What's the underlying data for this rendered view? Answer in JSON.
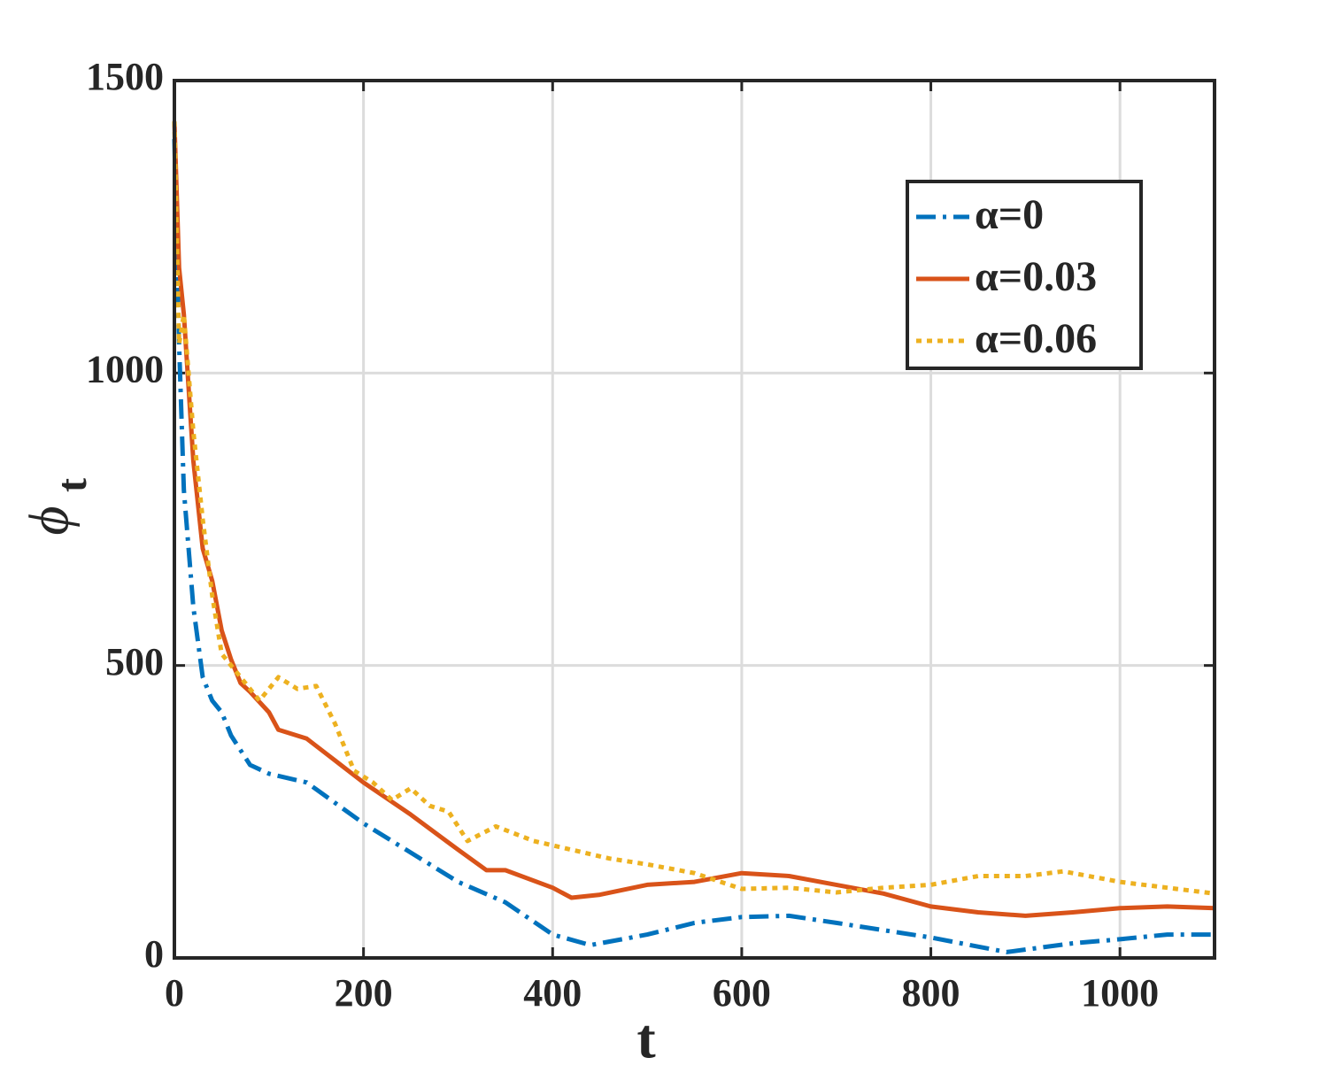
{
  "chart_data": {
    "type": "line",
    "xlabel": "t",
    "ylabel": "ϕ",
    "ylabel_subscript": "t",
    "xlim": [
      0,
      1100
    ],
    "ylim": [
      0,
      1500
    ],
    "xticks": [
      0,
      200,
      400,
      600,
      800,
      1000
    ],
    "yticks": [
      0,
      500,
      1000,
      1500
    ],
    "grid": true,
    "legend": "upper right",
    "series": [
      {
        "name": "α=0",
        "color": "#0072bd",
        "style": "dashdot",
        "x": [
          0,
          5,
          10,
          20,
          30,
          40,
          50,
          60,
          80,
          100,
          140,
          200,
          300,
          350,
          400,
          440,
          500,
          550,
          600,
          650,
          700,
          800,
          880,
          950,
          1000,
          1050,
          1100
        ],
        "values": [
          1400,
          1050,
          800,
          600,
          480,
          440,
          420,
          380,
          330,
          315,
          300,
          230,
          130,
          95,
          40,
          22,
          40,
          60,
          70,
          72,
          60,
          35,
          10,
          25,
          32,
          40,
          40
        ]
      },
      {
        "name": "α=0.03",
        "color": "#d95319",
        "style": "solid",
        "x": [
          0,
          5,
          10,
          20,
          30,
          40,
          50,
          60,
          70,
          80,
          100,
          110,
          140,
          160,
          200,
          250,
          300,
          330,
          350,
          400,
          420,
          450,
          500,
          550,
          600,
          650,
          700,
          750,
          800,
          850,
          900,
          950,
          1000,
          1050,
          1100
        ],
        "values": [
          1430,
          1180,
          1100,
          850,
          700,
          645,
          560,
          510,
          470,
          455,
          420,
          390,
          375,
          350,
          300,
          245,
          185,
          150,
          150,
          120,
          103,
          108,
          125,
          130,
          145,
          140,
          125,
          110,
          88,
          78,
          72,
          78,
          85,
          88,
          85
        ]
      },
      {
        "name": "α=0.06",
        "color": "#edb120",
        "style": "dotted",
        "x": [
          0,
          5,
          10,
          15,
          20,
          30,
          40,
          50,
          70,
          90,
          100,
          110,
          130,
          150,
          170,
          190,
          210,
          230,
          250,
          270,
          290,
          310,
          340,
          380,
          420,
          460,
          500,
          550,
          600,
          650,
          700,
          750,
          800,
          850,
          900,
          940,
          1000,
          1050,
          1100
        ],
        "values": [
          1430,
          1050,
          1100,
          1000,
          900,
          750,
          620,
          520,
          480,
          440,
          460,
          480,
          460,
          465,
          400,
          320,
          300,
          270,
          290,
          260,
          250,
          200,
          225,
          200,
          185,
          170,
          160,
          145,
          118,
          120,
          112,
          120,
          125,
          140,
          140,
          148,
          130,
          120,
          110
        ]
      }
    ]
  }
}
